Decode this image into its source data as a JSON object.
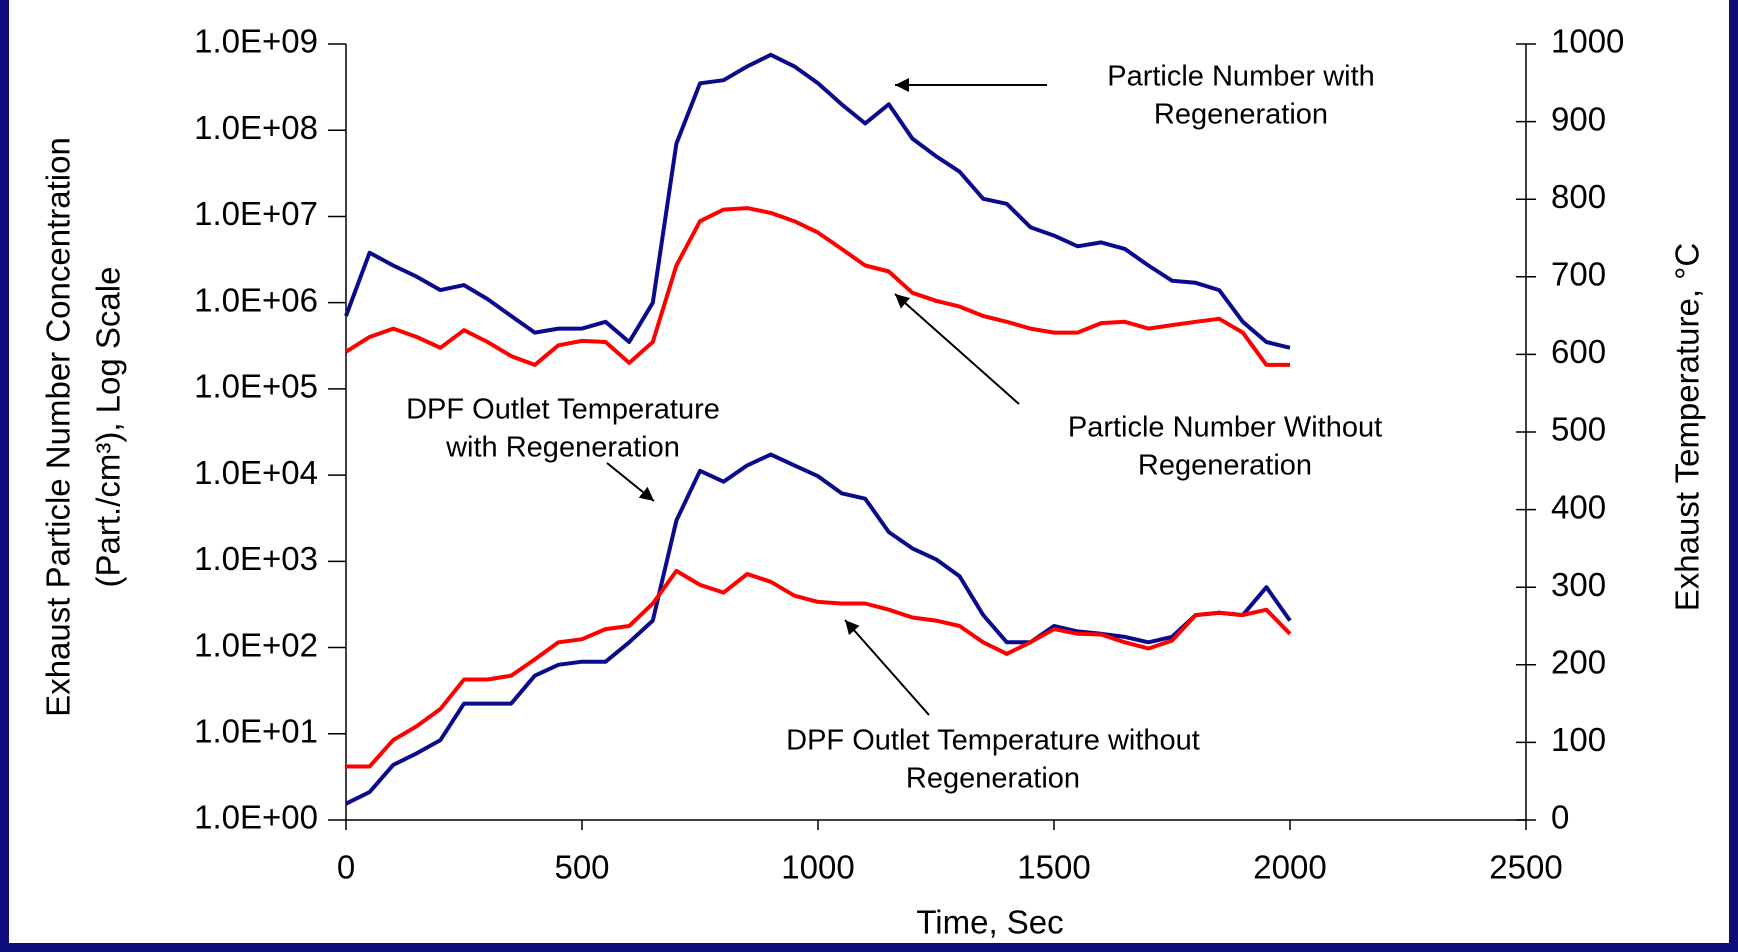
{
  "chart_data": {
    "type": "line",
    "xlabel": "Time, Sec",
    "ylabel": [
      "Exhaust Particle Number Concentration",
      "(Part./cm³), Log Scale"
    ],
    "y2label": "Exhaust Temperature, °C",
    "ylog": true,
    "grid": false,
    "xlim": [
      0,
      2500
    ],
    "xticks": [
      0,
      500,
      1000,
      1500,
      2000,
      2500
    ],
    "ylim": [
      1,
      1000000000
    ],
    "yticks": [
      {
        "value": 1,
        "label": "1.0E+00"
      },
      {
        "value": 10,
        "label": "1.0E+01"
      },
      {
        "value": 100,
        "label": "1.0E+02"
      },
      {
        "value": 1000,
        "label": "1.0E+03"
      },
      {
        "value": 10000,
        "label": "1.0E+04"
      },
      {
        "value": 100000,
        "label": "1.0E+05"
      },
      {
        "value": 1000000,
        "label": "1.0E+06"
      },
      {
        "value": 10000000,
        "label": "1.0E+07"
      },
      {
        "value": 100000000,
        "label": "1.0E+08"
      },
      {
        "value": 1000000000,
        "label": "1.0E+09"
      }
    ],
    "y2lim": [
      0,
      1000
    ],
    "y2ticks": [
      0,
      100,
      200,
      300,
      400,
      500,
      600,
      700,
      800,
      900,
      1000
    ],
    "x": [
      0,
      50,
      100,
      150,
      200,
      250,
      300,
      350,
      400,
      450,
      500,
      550,
      600,
      650,
      700,
      750,
      800,
      850,
      900,
      950,
      1000,
      1050,
      1100,
      1150,
      1200,
      1250,
      1300,
      1350,
      1400,
      1450,
      1500,
      1550,
      1600,
      1650,
      1700,
      1750,
      1800,
      1850,
      1900,
      1950,
      2000
    ],
    "series": [
      {
        "color": "#0a0a8c",
        "axis": "y",
        "values": [
          700000,
          3800000,
          2700000,
          2000000,
          1400000,
          1600000,
          1100000,
          700000,
          450000,
          500000,
          500000,
          600000,
          350000,
          1000000,
          70000000,
          350000000,
          380000000,
          550000000,
          750000000,
          550000000,
          350000000,
          200000000,
          120000000,
          200000000,
          80000000,
          50000000,
          33000000,
          16000000,
          14000000,
          7500000,
          6000000,
          4500000,
          5000000,
          4200000,
          2700000,
          1800000,
          1700000,
          1400000,
          600000,
          350000,
          300000
        ]
      },
      {
        "color": "#ff0000",
        "axis": "y",
        "values": [
          270000,
          400000,
          500000,
          400000,
          300000,
          480000,
          350000,
          240000,
          190000,
          320000,
          360000,
          350000,
          200000,
          350000,
          2700000,
          8800000,
          12000000,
          12500000,
          11000000,
          8800000,
          6500000,
          4200000,
          2700000,
          2300000,
          1300000,
          1050000,
          900000,
          700000,
          600000,
          500000,
          450000,
          450000,
          580000,
          600000,
          500000,
          550000,
          600000,
          650000,
          450000,
          190000,
          190000
        ]
      },
      {
        "color": "#0a0a8c",
        "axis": "y2",
        "values": [
          21,
          36,
          71,
          86,
          103,
          150,
          150,
          150,
          186,
          200,
          204,
          204,
          229,
          257,
          386,
          450,
          436,
          457,
          471,
          457,
          443,
          421,
          414,
          371,
          350,
          336,
          314,
          264,
          229,
          229,
          250,
          243,
          240,
          236,
          229,
          236,
          264,
          267,
          264,
          300,
          257
        ]
      },
      {
        "color": "#ff0000",
        "axis": "y2",
        "values": [
          69,
          69,
          103,
          121,
          143,
          181,
          181,
          186,
          207,
          229,
          233,
          246,
          250,
          279,
          321,
          303,
          293,
          317,
          307,
          289,
          281,
          279,
          279,
          271,
          261,
          257,
          250,
          229,
          214,
          229,
          246,
          240,
          239,
          229,
          221,
          231,
          264,
          267,
          264,
          271,
          240
        ]
      }
    ],
    "annotations": [
      {
        "text": [
          "Particle Number with",
          "Regeneration"
        ]
      },
      {
        "text": [
          "Particle Number Without",
          "Regeneration"
        ]
      },
      {
        "text": [
          "DPF Outlet Temperature",
          "with Regeneration"
        ]
      },
      {
        "text": [
          "DPF Outlet Temperature without",
          "Regeneration"
        ]
      }
    ]
  }
}
